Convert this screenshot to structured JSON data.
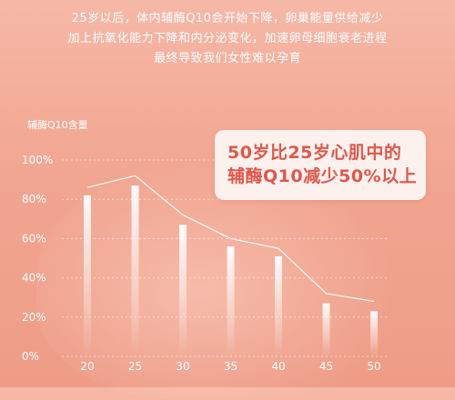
{
  "intro": {
    "lines": [
      "25岁以后，体内辅酶Q10会开始下降，卵巢能量供给减少",
      "加上抗氧化能力下降和内分泌变化，加速卵母细胞衰老进程",
      "最终导致我们女性难以孕育"
    ]
  },
  "callout": {
    "lines": [
      "50岁比25岁心肌中的",
      "辅酶Q10减少50%以上"
    ]
  },
  "colors": {
    "background": "#f1a691",
    "bar_top": "#ffffff",
    "line": "#ffffff",
    "callout_text": "#e0574a"
  },
  "chart_data": {
    "type": "bar",
    "title": "",
    "xlabel": "",
    "ylabel": "辅酶Q10含量",
    "categories": [
      "20",
      "25",
      "30",
      "35",
      "40",
      "45",
      "50"
    ],
    "values": [
      82,
      87,
      67,
      56,
      51,
      27,
      23
    ],
    "ylim": [
      0,
      100
    ],
    "yticks": [
      "0%",
      "20%",
      "40%",
      "60%",
      "80%",
      "100%"
    ],
    "series": [
      {
        "type": "bar",
        "values": [
          82,
          87,
          67,
          56,
          51,
          27,
          23
        ]
      },
      {
        "type": "line",
        "values": [
          86,
          92,
          72,
          60,
          55,
          32,
          28
        ]
      }
    ],
    "grid": true
  }
}
